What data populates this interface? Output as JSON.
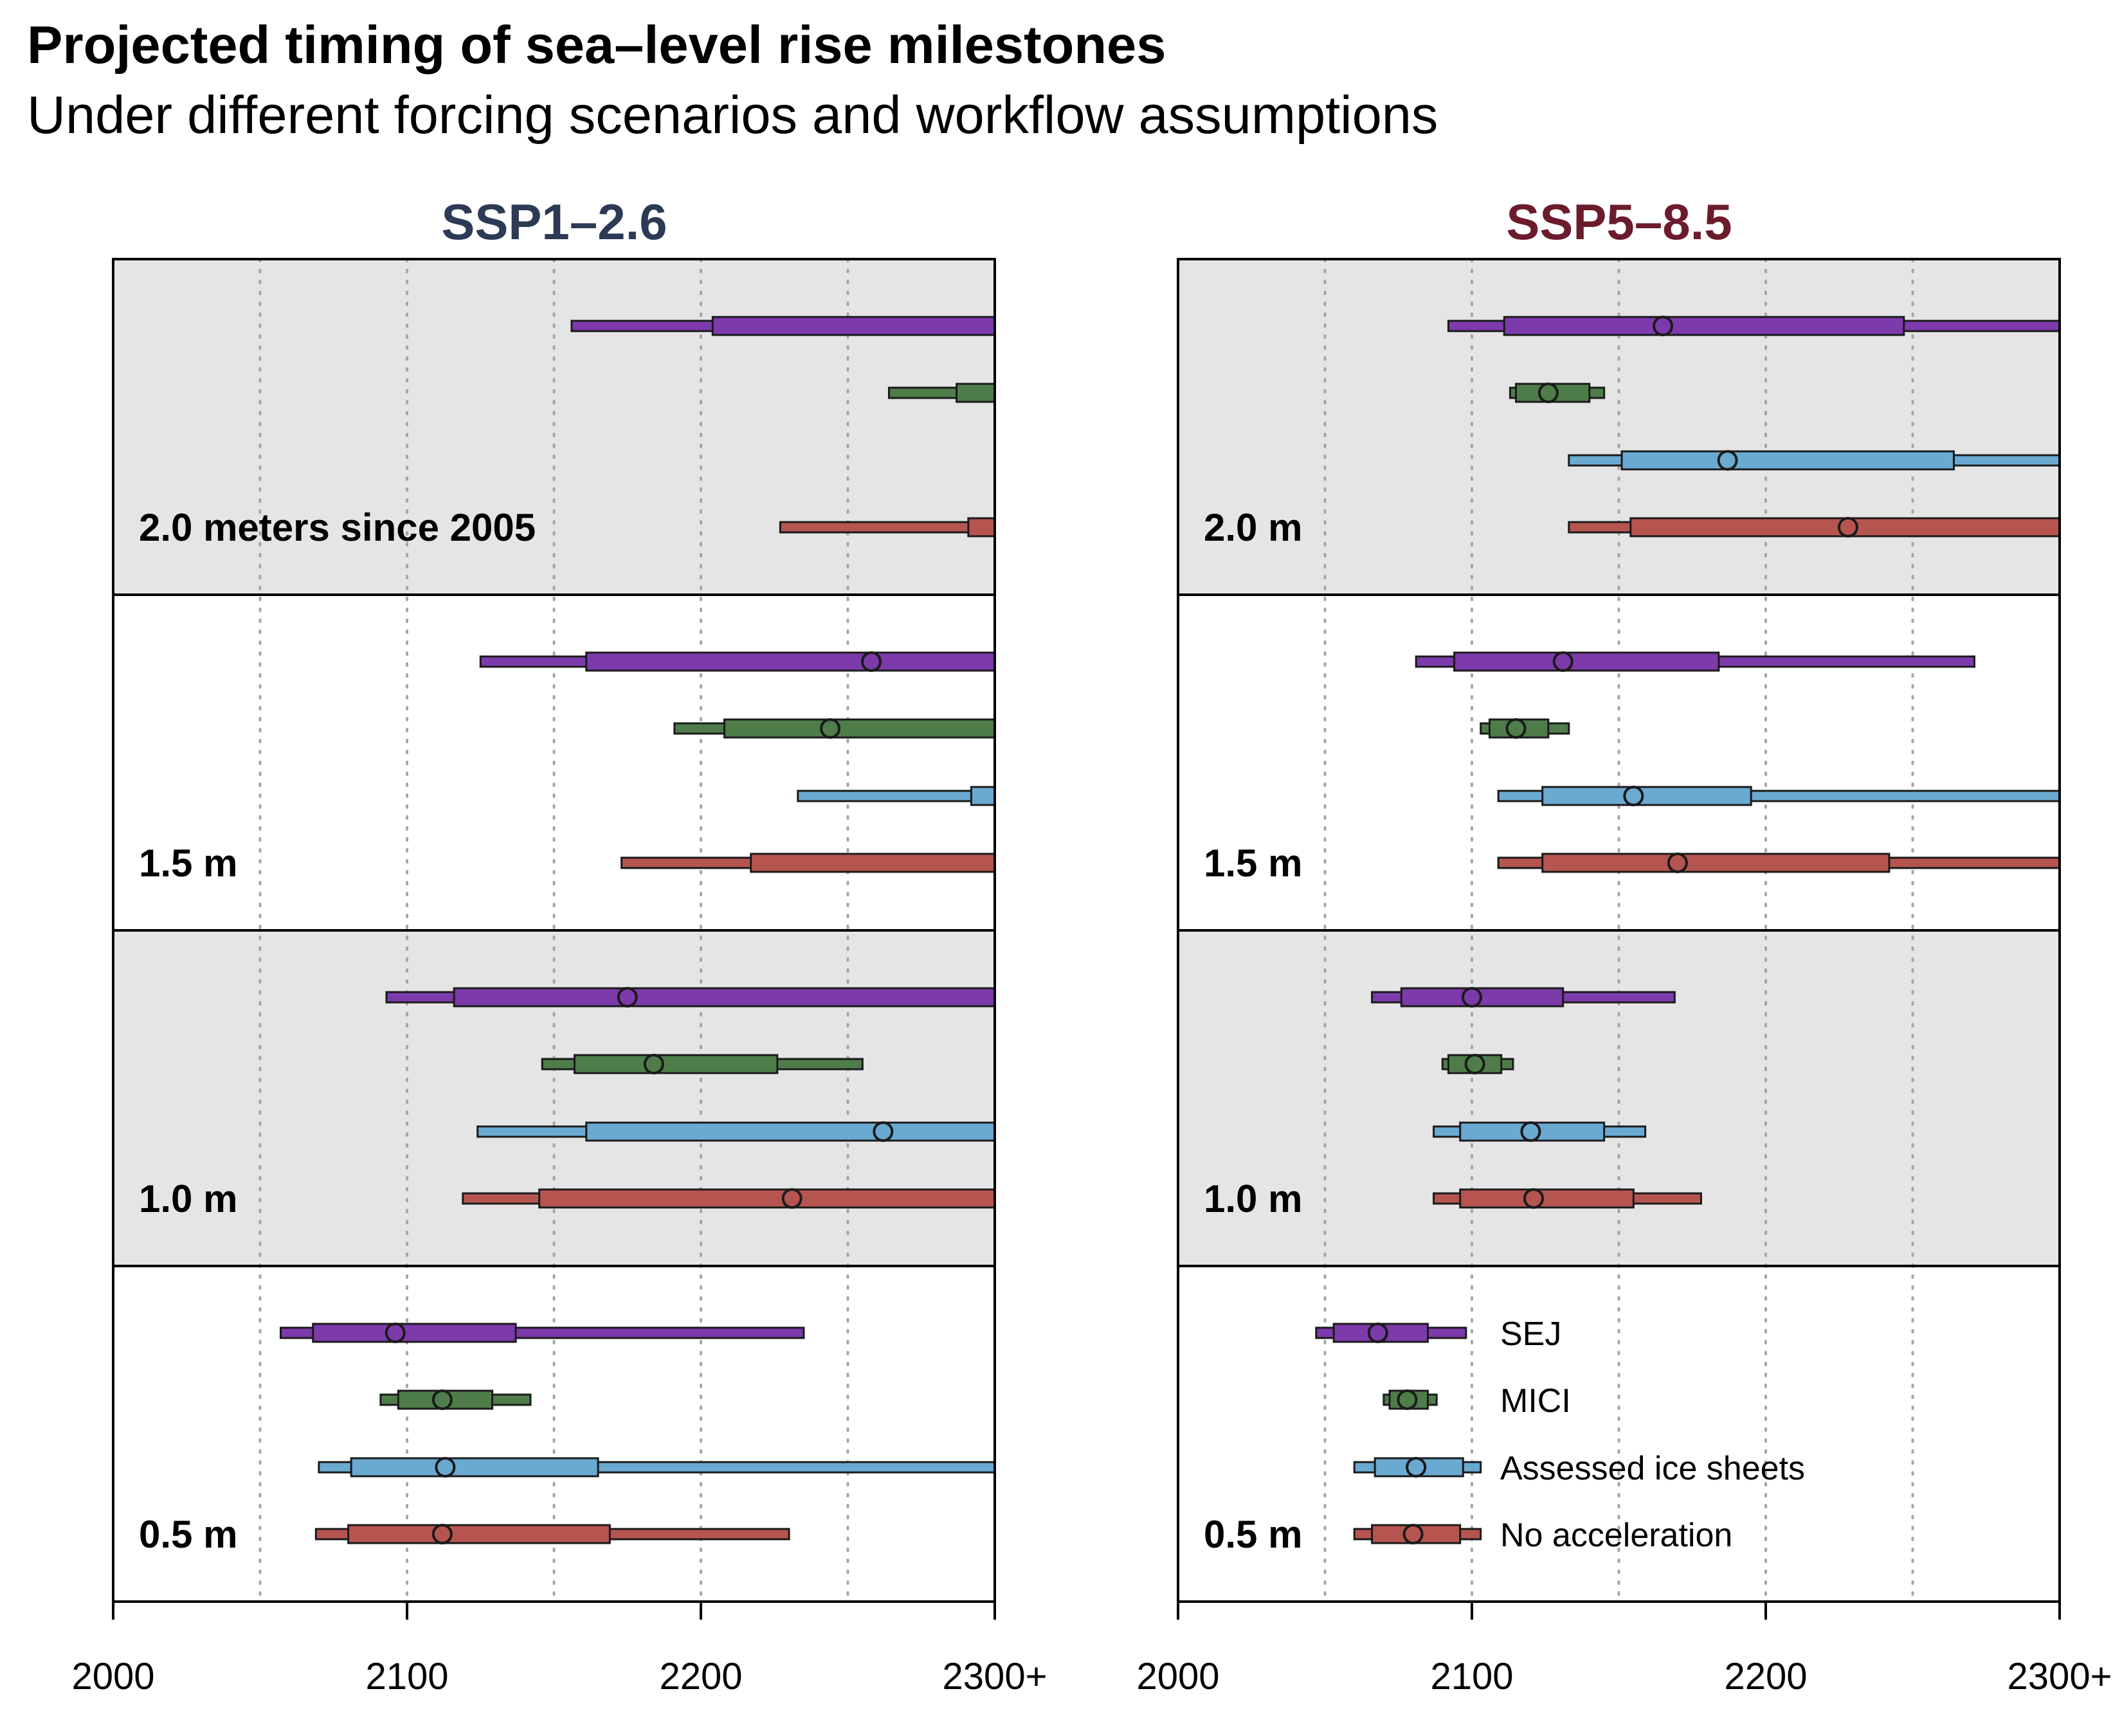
{
  "title": "Projected timing of sea–level rise milestones",
  "subtitle": "Under different forcing scenarios and workflow assumptions",
  "colors": {
    "SEJ": "#7d3aab",
    "MICI": "#4e7d4a",
    "Assessed ice sheets": "#6aaad2",
    "No acceleration": "#b65550",
    "shade": "#e5e5e5",
    "ssp126_title": "#2c3a55",
    "ssp585_title": "#6b1b2c"
  },
  "chart_data": {
    "type": "range-dot",
    "x_ticks": [
      "2000",
      "2100",
      "2200",
      "2300+"
    ],
    "xlim": [
      2000,
      2300
    ],
    "grid": "dotted vertical lines at 2050, 2100, 2150, 2200, 2250",
    "legend": {
      "placement": "SSP5–8.5 panel, 0.5 m row",
      "entries": [
        "SEJ",
        "MICI",
        "Assessed ice sheets",
        "No acceleration"
      ]
    },
    "panels": [
      {
        "title": "SSP1–2.6",
        "rows": [
          {
            "label": "2.0 meters since 2005",
            "series": [
              {
                "name": "SEJ",
                "outer": [
                  2156,
                  2300
                ],
                "inner": [
                  2204,
                  2300
                ],
                "median": null
              },
              {
                "name": "MICI",
                "outer": [
                  2264,
                  2300
                ],
                "inner": [
                  2287,
                  2300
                ],
                "median": null
              },
              {
                "name": "No acceleration",
                "outer": [
                  2227,
                  2300
                ],
                "inner": [
                  2291,
                  2300
                ],
                "median": null
              }
            ]
          },
          {
            "label": "1.5 m",
            "series": [
              {
                "name": "SEJ",
                "outer": [
                  2125,
                  2300
                ],
                "inner": [
                  2161,
                  2300
                ],
                "median": 2258
              },
              {
                "name": "MICI",
                "outer": [
                  2191,
                  2300
                ],
                "inner": [
                  2208,
                  2300
                ],
                "median": 2244
              },
              {
                "name": "Assessed ice sheets",
                "outer": [
                  2233,
                  2300
                ],
                "inner": [
                  2292,
                  2300
                ],
                "median": null
              },
              {
                "name": "No acceleration",
                "outer": [
                  2173,
                  2300
                ],
                "inner": [
                  2217,
                  2300
                ],
                "median": null
              }
            ]
          },
          {
            "label": "1.0 m",
            "series": [
              {
                "name": "SEJ",
                "outer": [
                  2093,
                  2300
                ],
                "inner": [
                  2116,
                  2300
                ],
                "median": 2175
              },
              {
                "name": "MICI",
                "outer": [
                  2146,
                  2255
                ],
                "inner": [
                  2157,
                  2226
                ],
                "median": 2184
              },
              {
                "name": "Assessed ice sheets",
                "outer": [
                  2124,
                  2300
                ],
                "inner": [
                  2161,
                  2300
                ],
                "median": 2262
              },
              {
                "name": "No acceleration",
                "outer": [
                  2119,
                  2300
                ],
                "inner": [
                  2145,
                  2300
                ],
                "median": 2231
              }
            ]
          },
          {
            "label": "0.5 m",
            "series": [
              {
                "name": "SEJ",
                "outer": [
                  2057,
                  2235
                ],
                "inner": [
                  2068,
                  2137
                ],
                "median": 2096
              },
              {
                "name": "MICI",
                "outer": [
                  2091,
                  2142
                ],
                "inner": [
                  2097,
                  2129
                ],
                "median": 2112
              },
              {
                "name": "Assessed ice sheets",
                "outer": [
                  2070,
                  2300
                ],
                "inner": [
                  2081,
                  2165
                ],
                "median": 2113
              },
              {
                "name": "No acceleration",
                "outer": [
                  2069,
                  2230
                ],
                "inner": [
                  2080,
                  2169
                ],
                "median": 2112
              }
            ]
          }
        ]
      },
      {
        "title": "SSP5–8.5",
        "rows": [
          {
            "label": "2.0 m",
            "series": [
              {
                "name": "SEJ",
                "outer": [
                  2092,
                  2300
                ],
                "inner": [
                  2111,
                  2247
                ],
                "median": 2165
              },
              {
                "name": "MICI",
                "outer": [
                  2113,
                  2145
                ],
                "inner": [
                  2115,
                  2140
                ],
                "median": 2126
              },
              {
                "name": "Assessed ice sheets",
                "outer": [
                  2133,
                  2300
                ],
                "inner": [
                  2151,
                  2264
                ],
                "median": 2187
              },
              {
                "name": "No acceleration",
                "outer": [
                  2133,
                  2300
                ],
                "inner": [
                  2154,
                  2300
                ],
                "median": 2228
              }
            ]
          },
          {
            "label": "1.5 m",
            "series": [
              {
                "name": "SEJ",
                "outer": [
                  2081,
                  2271
                ],
                "inner": [
                  2094,
                  2184
                ],
                "median": 2131
              },
              {
                "name": "MICI",
                "outer": [
                  2103,
                  2133
                ],
                "inner": [
                  2106,
                  2126
                ],
                "median": 2115
              },
              {
                "name": "Assessed ice sheets",
                "outer": [
                  2109,
                  2300
                ],
                "inner": [
                  2124,
                  2195
                ],
                "median": 2155
              },
              {
                "name": "No acceleration",
                "outer": [
                  2109,
                  2300
                ],
                "inner": [
                  2124,
                  2242
                ],
                "median": 2170
              }
            ]
          },
          {
            "label": "1.0 m",
            "series": [
              {
                "name": "SEJ",
                "outer": [
                  2066,
                  2169
                ],
                "inner": [
                  2076,
                  2131
                ],
                "median": 2100
              },
              {
                "name": "MICI",
                "outer": [
                  2090,
                  2114
                ],
                "inner": [
                  2092,
                  2110
                ],
                "median": 2101
              },
              {
                "name": "Assessed ice sheets",
                "outer": [
                  2087,
                  2159
                ],
                "inner": [
                  2096,
                  2145
                ],
                "median": 2120
              },
              {
                "name": "No acceleration",
                "outer": [
                  2087,
                  2178
                ],
                "inner": [
                  2096,
                  2155
                ],
                "median": 2121
              }
            ]
          },
          {
            "label": "0.5 m",
            "series": []
          }
        ]
      }
    ]
  }
}
